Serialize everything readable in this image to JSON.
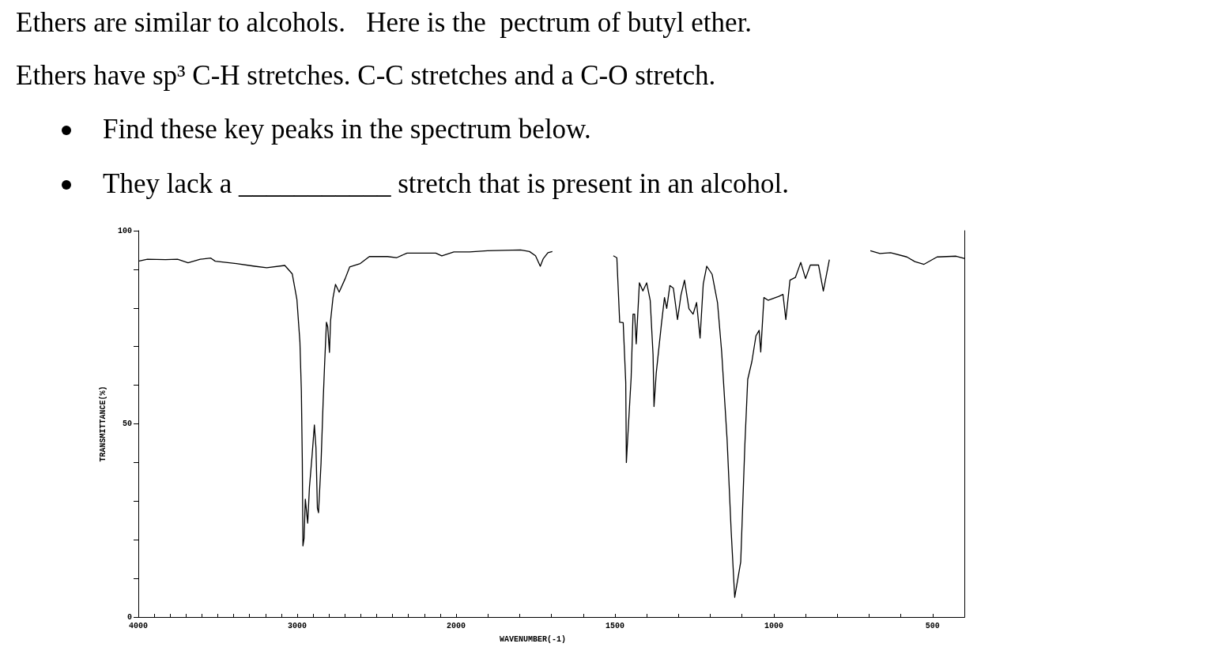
{
  "chart_data": [
    {
      "type": "line",
      "title": "Ethers are similar to alcohols.   Here is the  pectrum of butyl ether.",
      "subtitle": "Ethers have sp³ C-H stretches. C-C stretches and a C-O stretch.",
      "annotations": [
        "Find these key peaks in the spectrum below.",
        "They lack a ___________ stretch that is present in an alcohol."
      ],
      "ylabel": "TRANSMITTANCE(%)",
      "color": "#000000",
      "marker": "none",
      "xlim": [
        4000,
        2000
      ],
      "ylim": [
        0,
        100
      ],
      "xticks": [
        4000,
        {
          "value": 3900,
          "label": null
        },
        {
          "value": 3800,
          "label": null
        },
        {
          "value": 3700,
          "label": null
        },
        {
          "value": 3600,
          "label": null
        },
        {
          "value": 3500,
          "label": null
        },
        {
          "value": 3400,
          "label": null
        },
        {
          "value": 3300,
          "label": null
        },
        {
          "value": 3200,
          "label": null
        },
        {
          "value": 3100,
          "label": null
        },
        3000,
        {
          "value": 2900,
          "label": null
        },
        {
          "value": 2800,
          "label": null
        },
        {
          "value": 2700,
          "label": null
        },
        {
          "value": 2600,
          "label": null
        },
        {
          "value": 2500,
          "label": null
        },
        {
          "value": 2400,
          "label": null
        },
        {
          "value": 2300,
          "label": null
        },
        {
          "value": 2200,
          "label": null
        },
        {
          "value": 2100,
          "label": null
        },
        2000
      ],
      "yticks": [
        0,
        {
          "value": 10,
          "label": null
        },
        {
          "value": 20,
          "label": null
        },
        {
          "value": 30,
          "label": null
        },
        {
          "value": 40,
          "label": null
        },
        50,
        {
          "value": 60,
          "label": null
        },
        {
          "value": 70,
          "label": null
        },
        {
          "value": 80,
          "label": null
        },
        {
          "value": 90,
          "label": null
        },
        100
      ],
      "x": [
        4000,
        3943,
        3829,
        3753,
        3687,
        3610,
        3544,
        3516,
        3383,
        3268,
        3192,
        3078,
        3031,
        3002,
        2983,
        2974,
        2968,
        2964,
        2957,
        2949,
        2934,
        2923,
        2907,
        2892,
        2882,
        2873,
        2866,
        2850,
        2837,
        2828,
        2816,
        2808,
        2797,
        2790,
        2775,
        2759,
        2736,
        2698,
        2670,
        2603,
        2546,
        2432,
        2375,
        2309,
        2128,
        2090,
        2014,
        2000
      ],
      "values": [
        92.1,
        92.6,
        92.5,
        92.6,
        91.7,
        92.6,
        92.9,
        92.1,
        91.5,
        90.8,
        90.4,
        91.0,
        88.8,
        82.2,
        71.2,
        58.7,
        40.7,
        18.4,
        20.3,
        30.5,
        24.3,
        33.6,
        41.5,
        49.7,
        43.8,
        28.2,
        27.0,
        39.9,
        55.6,
        65.0,
        76.3,
        75.1,
        68.5,
        76.7,
        82.6,
        86.1,
        84.1,
        87.6,
        90.6,
        91.5,
        93.3,
        93.3,
        93.0,
        94.2,
        94.2,
        93.5,
        94.5,
        94.5
      ]
    },
    {
      "type": "line",
      "xlabel": "WAVENUMBER(-1)",
      "color": "#000000",
      "marker": "none",
      "tick_labels": "x",
      "xlim": [
        2000,
        400
      ],
      "ylim": [
        0,
        100
      ],
      "xticks": [
        {
          "value": 1900,
          "label": null
        },
        {
          "value": 1800,
          "label": null
        },
        {
          "value": 1700,
          "label": null
        },
        {
          "value": 1600,
          "label": null
        },
        1500,
        {
          "value": 1400,
          "label": null
        },
        {
          "value": 1300,
          "label": null
        },
        {
          "value": 1200,
          "label": null
        },
        {
          "value": 1100,
          "label": null
        },
        1000,
        {
          "value": 900,
          "label": null
        },
        {
          "value": 800,
          "label": null
        },
        {
          "value": 700,
          "label": null
        },
        {
          "value": 600,
          "label": null
        },
        500
      ],
      "x": [
        2000,
        1958,
        1901,
        1797,
        1769,
        1750,
        1735,
        1726,
        1711,
        1697,
        1600,
        1505,
        1494,
        1485,
        1474,
        1466,
        1464,
        1460,
        1449,
        1443,
        1438,
        1433,
        1423,
        1412,
        1400,
        1389,
        1380,
        1377,
        1370,
        1354,
        1344,
        1337,
        1327,
        1316,
        1303,
        1292,
        1281,
        1267,
        1254,
        1243,
        1232,
        1222,
        1211,
        1194,
        1177,
        1164,
        1147,
        1134,
        1123,
        1117,
        1104,
        1091,
        1082,
        1069,
        1056,
        1046,
        1041,
        1031,
        1018,
        984,
        971,
        962,
        949,
        932,
        915,
        900,
        885,
        859,
        844,
        825,
        760,
        696,
        666,
        632,
        581,
        556,
        527,
        486,
        426,
        400
      ],
      "values": [
        94.5,
        94.5,
        94.8,
        95.0,
        94.6,
        93.5,
        90.8,
        92.7,
        94.3,
        94.6,
        null,
        93.5,
        93.0,
        76.3,
        76.2,
        60.8,
        40.0,
        46.0,
        61.9,
        78.4,
        78.4,
        70.7,
        86.5,
        84.4,
        86.5,
        82.0,
        67.9,
        54.5,
        63.1,
        75.6,
        82.7,
        79.9,
        85.8,
        85.1,
        77.0,
        83.4,
        87.2,
        79.8,
        78.4,
        81.4,
        72.2,
        86.2,
        90.8,
        88.7,
        81.3,
        68.6,
        46.0,
        22.1,
        5.1,
        8.0,
        14.3,
        44.6,
        61.5,
        66.1,
        72.8,
        74.2,
        68.6,
        82.7,
        82.0,
        83.0,
        83.5,
        77.0,
        87.2,
        87.9,
        91.8,
        87.6,
        91.1,
        91.1,
        84.4,
        92.5,
        null,
        94.8,
        94.1,
        94.3,
        93.2,
        92.0,
        91.3,
        93.2,
        93.4,
        92.8
      ]
    }
  ]
}
